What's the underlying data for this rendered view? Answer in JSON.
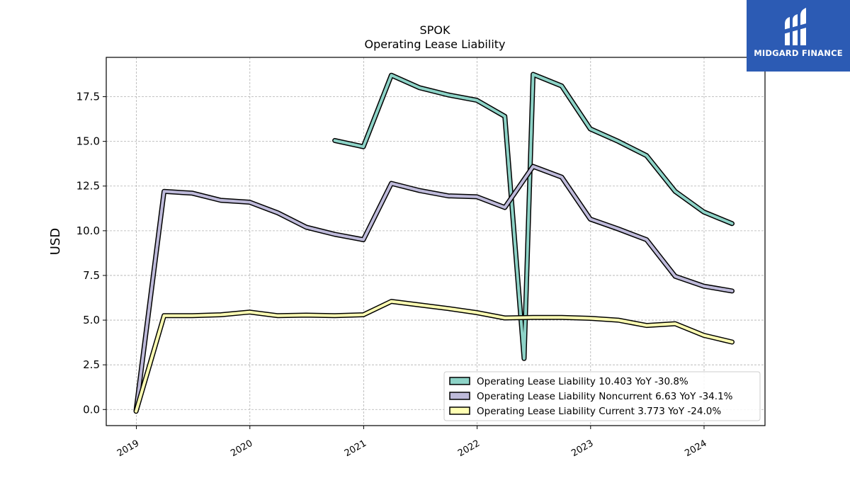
{
  "chart_data": {
    "type": "line",
    "title": "SPOK",
    "subtitle": "Operating Lease Liability",
    "ylabel": "USD",
    "xlabel": "",
    "ylim": [
      -0.9,
      19.7
    ],
    "xlim": [
      "2018-09-26",
      "2024-07-15"
    ],
    "grid": true,
    "legend_position": "lower-right",
    "x_ticks": [
      "2019",
      "2020",
      "2021",
      "2022",
      "2023",
      "2024"
    ],
    "y_ticks": [
      "0.0",
      "2.5",
      "5.0",
      "7.5",
      "10.0",
      "12.5",
      "15.0",
      "17.5"
    ],
    "series": [
      {
        "name": "Operating Lease Liability",
        "legend_label": "Operating Lease Liability  10.403 YoY -30.8%",
        "color": "#8dd3c7",
        "x": [
          "2020-09-30",
          "2020-12-31",
          "2021-03-31",
          "2021-06-30",
          "2021-09-30",
          "2021-12-31",
          "2022-03-31",
          "2022-06-01",
          "2022-06-30",
          "2022-09-30",
          "2022-12-31",
          "2023-03-31",
          "2023-06-30",
          "2023-09-30",
          "2023-12-31",
          "2024-03-31"
        ],
        "y": [
          15.05,
          14.7,
          18.7,
          18.0,
          17.6,
          17.3,
          16.4,
          2.85,
          18.75,
          18.1,
          15.7,
          15.0,
          14.2,
          12.2,
          11.05,
          10.403
        ]
      },
      {
        "name": "Operating Lease Liability Noncurrent",
        "legend_label": "Operating Lease Liability Noncurrent  6.63 YoY -34.1%",
        "color": "#bebada",
        "x": [
          "2018-12-31",
          "2019-03-31",
          "2019-06-30",
          "2019-09-30",
          "2019-12-31",
          "2020-03-31",
          "2020-06-30",
          "2020-09-30",
          "2020-12-31",
          "2021-03-31",
          "2021-06-30",
          "2021-09-30",
          "2021-12-31",
          "2022-03-31",
          "2022-06-30",
          "2022-09-30",
          "2022-12-31",
          "2023-03-31",
          "2023-06-30",
          "2023-09-30",
          "2023-12-31",
          "2024-03-31"
        ],
        "y": [
          -0.05,
          12.2,
          12.1,
          11.7,
          11.6,
          11.0,
          10.2,
          9.8,
          9.5,
          12.65,
          12.25,
          11.95,
          11.9,
          11.3,
          13.6,
          13.0,
          10.65,
          10.1,
          9.5,
          7.45,
          6.9,
          6.63
        ]
      },
      {
        "name": "Operating Lease Liability Current",
        "legend_label": "Operating Lease Liability Current  3.773 YoY -24.0%",
        "color": "#ffffb3",
        "x": [
          "2018-12-31",
          "2019-03-31",
          "2019-06-30",
          "2019-09-30",
          "2019-12-31",
          "2020-03-31",
          "2020-06-30",
          "2020-09-30",
          "2020-12-31",
          "2021-03-31",
          "2021-06-30",
          "2021-09-30",
          "2021-12-31",
          "2022-03-31",
          "2022-06-30",
          "2022-09-30",
          "2022-12-31",
          "2023-03-31",
          "2023-06-30",
          "2023-09-30",
          "2023-12-31",
          "2024-03-31"
        ],
        "y": [
          -0.1,
          5.25,
          5.25,
          5.3,
          5.45,
          5.25,
          5.28,
          5.25,
          5.3,
          6.05,
          5.85,
          5.65,
          5.42,
          5.12,
          5.15,
          5.15,
          5.1,
          5.0,
          4.7,
          4.8,
          4.15,
          3.773
        ]
      }
    ]
  },
  "logo": {
    "text": "MIDGARD FINANCE",
    "icon": "midgard-logo-icon",
    "background": "#2c5bb4"
  }
}
